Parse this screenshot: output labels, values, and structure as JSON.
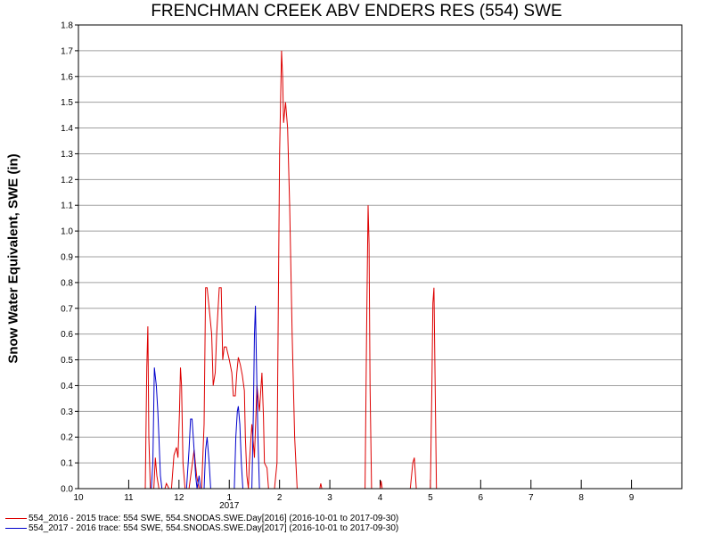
{
  "chart_data": {
    "type": "line",
    "title": "FRENCHMAN CREEK ABV ENDERS RES (554) SWE",
    "ylabel": "Snow Water Equivalent, SWE (in)",
    "xlabel": "",
    "ylim": [
      0,
      1.8
    ],
    "xlim": [
      0,
      12
    ],
    "grid": "horizontal",
    "y_ticks": [
      "0.0",
      "0.1",
      "0.2",
      "0.3",
      "0.4",
      "0.5",
      "0.6",
      "0.7",
      "0.8",
      "0.9",
      "1.0",
      "1.1",
      "1.2",
      "1.3",
      "1.4",
      "1.5",
      "1.6",
      "1.7",
      "1.8"
    ],
    "x_ticks": [
      "10",
      "11",
      "12",
      "1",
      "2",
      "3",
      "4",
      "5",
      "6",
      "7",
      "8",
      "9"
    ],
    "x_year_label": "2017",
    "series": [
      {
        "name": "554_2016 - 2015 trace: 554 SWE, 554.SNODAS.SWE.Day[2016] (2016-10-01 to 2017-09-30)",
        "color": "#dd0000",
        "points": [
          [
            0,
            0
          ],
          [
            1.33,
            0
          ],
          [
            1.36,
            0.47
          ],
          [
            1.38,
            0.63
          ],
          [
            1.4,
            0.2
          ],
          [
            1.43,
            0
          ],
          [
            1.5,
            0
          ],
          [
            1.53,
            0.12
          ],
          [
            1.56,
            0.05
          ],
          [
            1.6,
            0
          ],
          [
            1.72,
            0
          ],
          [
            1.75,
            0.02
          ],
          [
            1.8,
            0
          ],
          [
            1.85,
            0
          ],
          [
            1.9,
            0.13
          ],
          [
            1.95,
            0.16
          ],
          [
            1.98,
            0.12
          ],
          [
            2.01,
            0.3
          ],
          [
            2.03,
            0.47
          ],
          [
            2.05,
            0.4
          ],
          [
            2.08,
            0.1
          ],
          [
            2.12,
            0
          ],
          [
            2.2,
            0
          ],
          [
            2.3,
            0.15
          ],
          [
            2.35,
            0.05
          ],
          [
            2.4,
            0
          ],
          [
            2.45,
            0
          ],
          [
            2.5,
            0.25
          ],
          [
            2.53,
            0.78
          ],
          [
            2.56,
            0.78
          ],
          [
            2.6,
            0.7
          ],
          [
            2.65,
            0.6
          ],
          [
            2.68,
            0.4
          ],
          [
            2.72,
            0.45
          ],
          [
            2.75,
            0.6
          ],
          [
            2.8,
            0.78
          ],
          [
            2.84,
            0.78
          ],
          [
            2.87,
            0.5
          ],
          [
            2.9,
            0.55
          ],
          [
            2.94,
            0.55
          ],
          [
            3.0,
            0.5
          ],
          [
            3.05,
            0.45
          ],
          [
            3.08,
            0.36
          ],
          [
            3.12,
            0.36
          ],
          [
            3.15,
            0.45
          ],
          [
            3.18,
            0.51
          ],
          [
            3.22,
            0.48
          ],
          [
            3.26,
            0.44
          ],
          [
            3.3,
            0.38
          ],
          [
            3.32,
            0.2
          ],
          [
            3.35,
            0.05
          ],
          [
            3.38,
            0
          ],
          [
            3.4,
            0.1
          ],
          [
            3.45,
            0.25
          ],
          [
            3.5,
            0.12
          ],
          [
            3.55,
            0.4
          ],
          [
            3.6,
            0.3
          ],
          [
            3.65,
            0.45
          ],
          [
            3.68,
            0.28
          ],
          [
            3.7,
            0.1
          ],
          [
            3.75,
            0.08
          ],
          [
            3.78,
            0
          ],
          [
            3.9,
            0
          ],
          [
            3.95,
            0.1
          ],
          [
            4.0,
            1.3
          ],
          [
            4.04,
            1.7
          ],
          [
            4.06,
            1.6
          ],
          [
            4.08,
            1.42
          ],
          [
            4.12,
            1.5
          ],
          [
            4.16,
            1.4
          ],
          [
            4.2,
            1.1
          ],
          [
            4.25,
            0.6
          ],
          [
            4.3,
            0.2
          ],
          [
            4.35,
            0
          ],
          [
            4.8,
            0
          ],
          [
            4.82,
            0.02
          ],
          [
            4.84,
            0
          ],
          [
            5.7,
            0
          ],
          [
            5.73,
            0.6
          ],
          [
            5.76,
            1.1
          ],
          [
            5.78,
            0.95
          ],
          [
            5.8,
            0.4
          ],
          [
            5.83,
            0
          ],
          [
            6.0,
            0
          ],
          [
            6.02,
            0.03
          ],
          [
            6.04,
            0
          ],
          [
            6.6,
            0
          ],
          [
            6.65,
            0.1
          ],
          [
            6.68,
            0.12
          ],
          [
            6.72,
            0
          ],
          [
            7.0,
            0
          ],
          [
            7.03,
            0.4
          ],
          [
            7.05,
            0.72
          ],
          [
            7.07,
            0.78
          ],
          [
            7.1,
            0.3
          ],
          [
            7.12,
            0
          ],
          [
            12,
            0
          ]
        ]
      },
      {
        "name": "554_2017 - 2016 trace: 554 SWE, 554.SNODAS.SWE.Day[2017] (2016-10-01 to 2017-09-30)",
        "color": "#0000cc",
        "points": [
          [
            0,
            0
          ],
          [
            1.45,
            0
          ],
          [
            1.48,
            0.1
          ],
          [
            1.51,
            0.47
          ],
          [
            1.55,
            0.4
          ],
          [
            1.58,
            0.3
          ],
          [
            1.6,
            0.2
          ],
          [
            1.63,
            0.05
          ],
          [
            1.66,
            0
          ],
          [
            2.15,
            0
          ],
          [
            2.2,
            0.15
          ],
          [
            2.23,
            0.27
          ],
          [
            2.26,
            0.27
          ],
          [
            2.3,
            0.15
          ],
          [
            2.33,
            0.05
          ],
          [
            2.36,
            0
          ],
          [
            2.4,
            0.05
          ],
          [
            2.43,
            0
          ],
          [
            2.5,
            0
          ],
          [
            2.53,
            0.15
          ],
          [
            2.56,
            0.2
          ],
          [
            2.6,
            0.1
          ],
          [
            2.63,
            0
          ],
          [
            3.1,
            0
          ],
          [
            3.13,
            0.2
          ],
          [
            3.16,
            0.3
          ],
          [
            3.18,
            0.32
          ],
          [
            3.21,
            0.25
          ],
          [
            3.24,
            0.1
          ],
          [
            3.27,
            0
          ],
          [
            3.45,
            0
          ],
          [
            3.48,
            0.3
          ],
          [
            3.5,
            0.6
          ],
          [
            3.52,
            0.71
          ],
          [
            3.54,
            0.5
          ],
          [
            3.57,
            0.2
          ],
          [
            3.6,
            0
          ],
          [
            12,
            0
          ]
        ]
      }
    ]
  }
}
